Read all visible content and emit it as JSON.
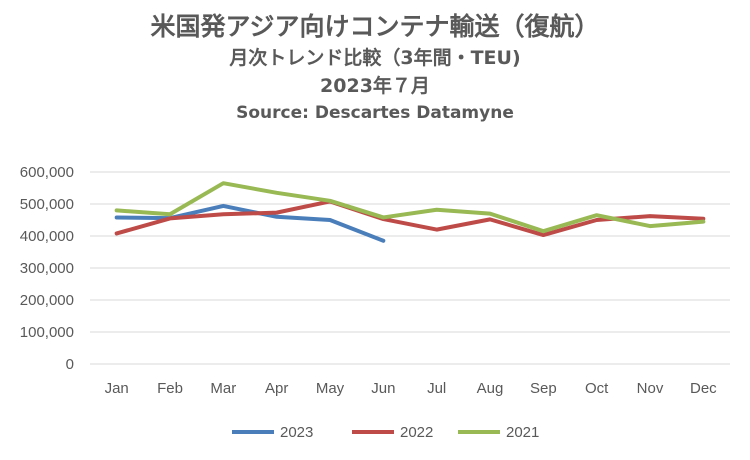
{
  "chart_data": {
    "type": "line",
    "title": "米国発アジア向けコンテナ輸送（復航）",
    "subtitle_1": "月次トレンド比較（3年間・TEU)",
    "subtitle_2": "2023年７月",
    "source": "Source: Descartes Datamyne",
    "categories": [
      "Jan",
      "Feb",
      "Mar",
      "Apr",
      "May",
      "Jun",
      "Jul",
      "Aug",
      "Sep",
      "Oct",
      "Nov",
      "Dec"
    ],
    "y_tick_labels": [
      "0",
      "100,000",
      "200,000",
      "300,000",
      "400,000",
      "500,000",
      "600,000"
    ],
    "y_ticks": [
      0,
      100000,
      200000,
      300000,
      400000,
      500000,
      600000
    ],
    "ylim": [
      0,
      600000
    ],
    "grid": true,
    "legend_position": "bottom",
    "series": [
      {
        "name": "2023",
        "color": "#4a7ebb",
        "values": [
          458000,
          456000,
          494000,
          460000,
          450000,
          385000,
          null,
          null,
          null,
          null,
          null,
          null
        ]
      },
      {
        "name": "2022",
        "color": "#be4b48",
        "values": [
          408000,
          455000,
          468000,
          473000,
          508000,
          453000,
          420000,
          452000,
          403000,
          450000,
          462000,
          454000
        ]
      },
      {
        "name": "2021",
        "color": "#98b954",
        "values": [
          480000,
          468000,
          565000,
          535000,
          510000,
          458000,
          482000,
          470000,
          415000,
          465000,
          431000,
          445000
        ]
      }
    ]
  }
}
